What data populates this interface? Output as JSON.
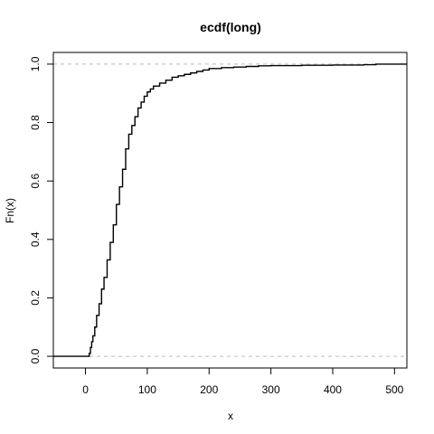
{
  "chart_data": {
    "type": "line",
    "step": true,
    "title": "ecdf(long)",
    "xlabel": "x",
    "ylabel": "Fn(x)",
    "xlim": [
      -52,
      520
    ],
    "ylim": [
      -0.04,
      1.04
    ],
    "x_ticks": [
      0,
      100,
      200,
      300,
      400,
      500
    ],
    "x_tick_labels": [
      "0",
      "100",
      "200",
      "300",
      "400",
      "500"
    ],
    "y_ticks": [
      0.0,
      0.2,
      0.4,
      0.6,
      0.8,
      1.0
    ],
    "y_tick_labels": [
      "0.0",
      "0.2",
      "0.4",
      "0.6",
      "0.8",
      "1.0"
    ],
    "reference_lines_y": [
      0,
      1
    ],
    "grid": false,
    "series": [
      {
        "x": [
          -52,
          4,
          6,
          8,
          10,
          12,
          15,
          18,
          22,
          26,
          30,
          35,
          40,
          45,
          50,
          55,
          60,
          65,
          70,
          75,
          80,
          85,
          90,
          95,
          100,
          105,
          110,
          120,
          130,
          140,
          150,
          160,
          170,
          180,
          190,
          200,
          220,
          240,
          260,
          280,
          300,
          350,
          400,
          450,
          470,
          500,
          520
        ],
        "y": [
          0,
          0,
          0.01,
          0.03,
          0.05,
          0.07,
          0.1,
          0.14,
          0.18,
          0.23,
          0.27,
          0.33,
          0.39,
          0.45,
          0.52,
          0.58,
          0.64,
          0.71,
          0.76,
          0.79,
          0.82,
          0.85,
          0.87,
          0.89,
          0.905,
          0.915,
          0.925,
          0.935,
          0.945,
          0.955,
          0.96,
          0.965,
          0.97,
          0.975,
          0.98,
          0.985,
          0.988,
          0.99,
          0.992,
          0.994,
          0.995,
          0.996,
          0.997,
          0.998,
          1.0,
          1.0,
          1.0
        ]
      }
    ]
  }
}
